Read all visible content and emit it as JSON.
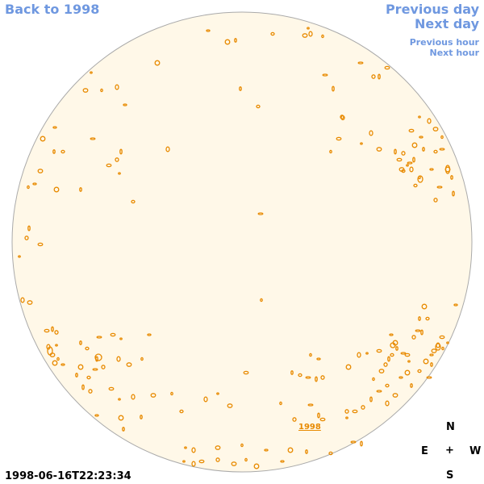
{
  "nav": {
    "back": "Back to 1998",
    "previous_day": "Previous day",
    "next_day": "Next day",
    "previous_hour": "Previous hour",
    "next_hour": "Next hour"
  },
  "disk": {
    "year_label": "1998",
    "fill_color": "#fff8e8",
    "contour_color": "#e88a00"
  },
  "compass": {
    "n": "N",
    "e": "E",
    "center": "+",
    "w": "W",
    "s": "S"
  },
  "timestamp": "1998-06-16T22:23:34"
}
